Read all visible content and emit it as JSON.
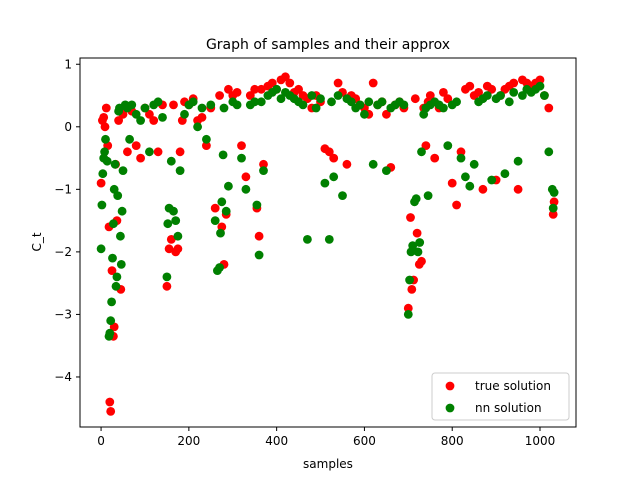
{
  "chart_data": {
    "type": "scatter",
    "title": "Graph of samples and their approx",
    "xlabel": "samples",
    "ylabel": "C_t",
    "xlim": [
      -48,
      1082
    ],
    "ylim": [
      -4.8,
      1.1
    ],
    "xticks": [
      0,
      200,
      400,
      600,
      800,
      1000
    ],
    "yticks": [
      -4,
      -3,
      -2,
      -1,
      0,
      1
    ],
    "xtick_labels": [
      "0",
      "200",
      "400",
      "600",
      "800",
      "1000"
    ],
    "ytick_labels": [
      "−4",
      "−3",
      "−2",
      "−1",
      "0",
      "1"
    ],
    "grid": false,
    "legend_position": "lower-right",
    "series": [
      {
        "name": "true solution",
        "color": "#ff0000",
        "x": [
          0,
          3,
          6,
          9,
          12,
          15,
          18,
          20,
          22,
          25,
          28,
          30,
          33,
          36,
          40,
          45,
          50,
          55,
          60,
          70,
          80,
          90,
          100,
          110,
          120,
          130,
          140,
          150,
          155,
          160,
          165,
          170,
          175,
          180,
          185,
          190,
          200,
          210,
          220,
          230,
          240,
          250,
          260,
          270,
          275,
          280,
          285,
          290,
          300,
          310,
          320,
          330,
          340,
          350,
          355,
          360,
          365,
          370,
          380,
          390,
          400,
          410,
          420,
          430,
          440,
          450,
          460,
          470,
          480,
          490,
          500,
          510,
          520,
          530,
          540,
          550,
          560,
          570,
          580,
          590,
          600,
          610,
          620,
          630,
          640,
          650,
          660,
          670,
          680,
          690,
          700,
          705,
          708,
          712,
          716,
          720,
          725,
          730,
          735,
          740,
          745,
          750,
          760,
          770,
          780,
          790,
          800,
          810,
          820,
          830,
          840,
          850,
          860,
          870,
          880,
          890,
          900,
          910,
          920,
          930,
          940,
          950,
          960,
          970,
          980,
          990,
          1000,
          1010,
          1020,
          1030,
          1032
        ],
        "y": [
          -0.9,
          0.1,
          0.15,
          0.0,
          0.3,
          -0.3,
          -1.6,
          -4.4,
          -4.55,
          -2.3,
          -3.35,
          -3.2,
          -0.6,
          -1.5,
          0.1,
          -2.6,
          0.2,
          0.3,
          -0.4,
          0.25,
          -0.3,
          -0.5,
          0.3,
          0.2,
          0.1,
          -0.4,
          0.35,
          -2.55,
          -1.95,
          -1.8,
          0.35,
          -2.0,
          -1.95,
          -0.4,
          0.1,
          0.4,
          0.35,
          0.45,
          0.1,
          0.15,
          -0.3,
          0.3,
          -1.3,
          0.5,
          -1.6,
          -2.2,
          -1.4,
          0.6,
          0.5,
          0.55,
          -0.3,
          -0.8,
          0.5,
          0.6,
          -1.3,
          -1.75,
          0.6,
          -0.6,
          0.65,
          0.7,
          0.6,
          0.75,
          0.8,
          0.7,
          0.55,
          0.6,
          0.5,
          0.45,
          0.3,
          0.5,
          0.4,
          -0.35,
          -0.4,
          -0.5,
          0.7,
          0.55,
          -0.6,
          0.5,
          0.45,
          0.35,
          0.3,
          0.2,
          0.7,
          0.35,
          0.4,
          0.2,
          -0.65,
          0.35,
          0.4,
          0.3,
          -2.9,
          -1.45,
          -2.6,
          -2.45,
          0.45,
          -1.7,
          -2.2,
          -2.15,
          0.3,
          -0.3,
          0.4,
          0.5,
          -0.5,
          0.3,
          0.55,
          0.45,
          -0.9,
          -1.25,
          -0.4,
          0.6,
          0.65,
          0.5,
          0.55,
          -1.0,
          0.65,
          0.6,
          -0.85,
          0.5,
          0.6,
          0.65,
          0.7,
          -1.0,
          0.75,
          0.7,
          0.65,
          0.7,
          0.75,
          0.5,
          0.3,
          -1.4,
          -1.2
        ]
      },
      {
        "name": "nn solution",
        "color": "#008000",
        "x": [
          0,
          2,
          4,
          6,
          8,
          10,
          14,
          18,
          20,
          22,
          24,
          26,
          28,
          30,
          32,
          34,
          36,
          38,
          40,
          42,
          44,
          46,
          48,
          50,
          55,
          60,
          65,
          70,
          80,
          90,
          100,
          110,
          120,
          130,
          140,
          150,
          152,
          155,
          160,
          165,
          170,
          175,
          180,
          190,
          200,
          210,
          220,
          230,
          240,
          250,
          260,
          265,
          270,
          272,
          275,
          278,
          280,
          285,
          290,
          300,
          310,
          320,
          330,
          340,
          350,
          355,
          360,
          365,
          370,
          380,
          390,
          400,
          410,
          420,
          430,
          440,
          450,
          460,
          470,
          480,
          490,
          500,
          510,
          520,
          525,
          530,
          540,
          550,
          560,
          570,
          580,
          590,
          600,
          610,
          620,
          630,
          640,
          650,
          660,
          670,
          680,
          690,
          700,
          703,
          706,
          710,
          714,
          718,
          722,
          726,
          730,
          735,
          740,
          745,
          750,
          760,
          770,
          780,
          790,
          800,
          810,
          820,
          830,
          840,
          850,
          860,
          870,
          880,
          890,
          900,
          910,
          920,
          930,
          940,
          950,
          960,
          970,
          980,
          990,
          1000,
          1010,
          1020,
          1028,
          1030,
          1032
        ],
        "y": [
          -1.95,
          -1.25,
          -0.75,
          -0.5,
          -0.4,
          -0.2,
          -0.55,
          -3.35,
          -3.3,
          -3.1,
          -2.8,
          -2.1,
          -1.55,
          -1.0,
          -0.6,
          -2.55,
          -2.4,
          -1.1,
          0.25,
          0.3,
          -1.75,
          -2.2,
          -1.35,
          -0.7,
          0.35,
          0.3,
          -0.2,
          0.35,
          0.2,
          0.1,
          0.3,
          -0.4,
          0.35,
          0.4,
          0.15,
          -2.4,
          -1.55,
          -1.3,
          -0.55,
          -1.35,
          -1.5,
          -1.75,
          -0.7,
          0.2,
          0.35,
          0.4,
          0.0,
          0.3,
          -0.2,
          0.35,
          -1.5,
          -2.3,
          -2.25,
          -1.7,
          -1.2,
          -0.45,
          0.3,
          -1.35,
          -0.95,
          0.4,
          0.35,
          -0.5,
          -1.0,
          0.35,
          0.4,
          -1.25,
          -2.05,
          0.4,
          -0.7,
          0.5,
          0.55,
          0.6,
          0.45,
          0.55,
          0.5,
          0.45,
          0.4,
          0.35,
          -1.8,
          0.5,
          0.3,
          0.45,
          -0.9,
          -1.8,
          0.4,
          -0.8,
          0.5,
          -1.1,
          0.45,
          0.4,
          0.3,
          0.35,
          0.2,
          0.4,
          -0.6,
          0.35,
          0.4,
          -0.7,
          0.3,
          0.35,
          0.4,
          0.35,
          -3.0,
          -2.45,
          -2.0,
          -1.9,
          -1.2,
          -1.15,
          -2.0,
          -1.85,
          -0.4,
          0.2,
          0.3,
          -1.1,
          0.35,
          0.4,
          0.35,
          0.3,
          -0.3,
          0.35,
          0.4,
          -0.5,
          -0.8,
          -0.95,
          -0.6,
          0.4,
          0.45,
          0.5,
          -0.85,
          0.45,
          0.5,
          -0.75,
          0.4,
          0.55,
          -0.55,
          0.5,
          0.6,
          0.55,
          0.6,
          0.65,
          0.5,
          -0.4,
          -1.0,
          -1.3,
          -1.05
        ]
      }
    ]
  }
}
